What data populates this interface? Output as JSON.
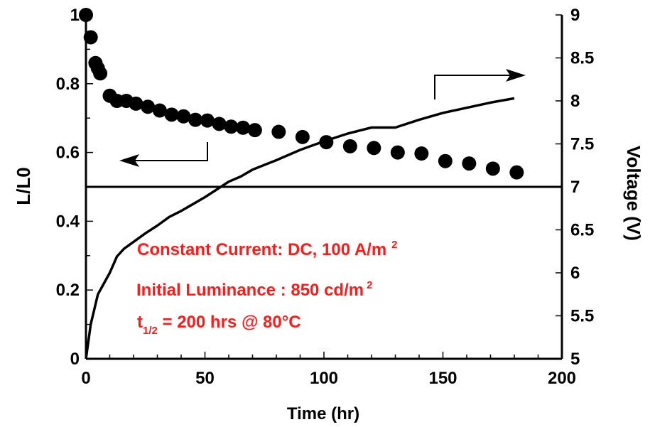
{
  "chart_data": {
    "type": "scatter",
    "xlabel": "Time (hr)",
    "ylabel_left": "L/L0",
    "ylabel_right": "Voltage (V)",
    "xlim": [
      0,
      200
    ],
    "ylim_left": [
      0,
      1
    ],
    "ylim_right": [
      5,
      9
    ],
    "x_ticks": [
      "0",
      "50",
      "100",
      "150",
      "200"
    ],
    "y_left_ticks": [
      "0",
      "0.2",
      "0.4",
      "0.6",
      "0.8",
      "1"
    ],
    "y_right_ticks": [
      "5",
      "5.5",
      "6",
      "6.5",
      "7",
      "7.5",
      "8",
      "8.5",
      "9"
    ],
    "reference_line": {
      "y_left": 0.5,
      "y_right": 7
    },
    "series": [
      {
        "axis": "left",
        "style": "markers",
        "x": [
          0,
          2,
          4,
          5,
          6,
          10,
          13,
          17,
          21,
          26,
          31,
          36,
          41,
          46,
          51,
          56,
          61,
          66,
          71,
          81,
          91,
          101,
          111,
          121,
          131,
          141,
          151,
          161,
          171,
          181
        ],
        "y": [
          1.0,
          0.935,
          0.86,
          0.845,
          0.83,
          0.765,
          0.75,
          0.75,
          0.742,
          0.733,
          0.722,
          0.71,
          0.705,
          0.695,
          0.693,
          0.683,
          0.675,
          0.672,
          0.665,
          0.66,
          0.645,
          0.63,
          0.618,
          0.613,
          0.6,
          0.597,
          0.575,
          0.568,
          0.553,
          0.542
        ]
      },
      {
        "axis": "right",
        "style": "line",
        "x": [
          0,
          2,
          5,
          10,
          13,
          16,
          20,
          25,
          30,
          35,
          40,
          45,
          50,
          55,
          60,
          65,
          70,
          80,
          90,
          100,
          110,
          120,
          130,
          140,
          150,
          160,
          170,
          180
        ],
        "y": [
          5.0,
          5.4,
          5.75,
          6.0,
          6.19,
          6.28,
          6.36,
          6.46,
          6.55,
          6.65,
          6.72,
          6.8,
          6.88,
          6.97,
          7.06,
          7.12,
          7.2,
          7.31,
          7.43,
          7.53,
          7.62,
          7.69,
          7.69,
          7.78,
          7.86,
          7.92,
          7.98,
          8.03
        ]
      }
    ],
    "annotations": {
      "line1_text": "Constant Current: DC, 100 A/m",
      "line1_sup": "2",
      "line2_text": "Initial Luminance : 850 cd/m",
      "line2_sup": "2",
      "line3_symbol": "t",
      "line3_sub": "1/2",
      "line3_text": " = 200 hrs @ 80°C",
      "color": "#ff1a1a"
    }
  }
}
